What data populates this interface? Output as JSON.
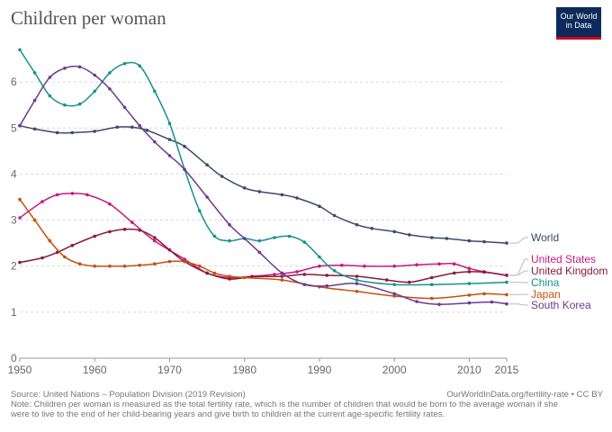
{
  "title": "Children per woman",
  "logo": {
    "line1": "Our World",
    "line2": "in Data"
  },
  "footer": {
    "source": "Source: United Nations – Population Division (2019 Revision)",
    "url": "OurWorldInData.org/fertility-rate • CC BY",
    "note_line1": "Note: Children per woman is measured as the total fertility rate, which is the number of children that would be born to the average woman if she",
    "note_line2": "were to live to the end of her child-bearing years and give birth to children at the current age-specific fertility rates."
  },
  "chart_data": {
    "type": "line",
    "title": "Children per woman",
    "xlabel": "",
    "ylabel": "",
    "xlim": [
      1950,
      2015
    ],
    "ylim": [
      0,
      7
    ],
    "xticks": [
      1950,
      1960,
      1970,
      1980,
      1990,
      2000,
      2010,
      2015
    ],
    "yticks": [
      0,
      1,
      2,
      3,
      4,
      5,
      6
    ],
    "grid": true,
    "legend": "line-end labels, right",
    "series": [
      {
        "name": "World",
        "color": "#3a4a6b",
        "x": [
          1950,
          1952,
          1955,
          1957,
          1960,
          1963,
          1965,
          1967,
          1970,
          1972,
          1975,
          1977,
          1980,
          1982,
          1985,
          1987,
          1990,
          1992,
          1995,
          1997,
          2000,
          2002,
          2005,
          2007,
          2010,
          2012,
          2015
        ],
        "y": [
          5.05,
          4.98,
          4.9,
          4.9,
          4.93,
          5.02,
          5.02,
          4.95,
          4.75,
          4.6,
          4.2,
          3.95,
          3.7,
          3.62,
          3.55,
          3.48,
          3.3,
          3.1,
          2.9,
          2.82,
          2.75,
          2.68,
          2.62,
          2.6,
          2.55,
          2.53,
          2.5
        ]
      },
      {
        "name": "United States",
        "color": "#c9187f",
        "x": [
          1950,
          1953,
          1955,
          1957,
          1959,
          1962,
          1965,
          1968,
          1972,
          1975,
          1978,
          1981,
          1984,
          1987,
          1990,
          1993,
          1996,
          2000,
          2003,
          2006,
          2008,
          2010,
          2012,
          2015
        ],
        "y": [
          3.05,
          3.4,
          3.55,
          3.58,
          3.55,
          3.35,
          2.95,
          2.55,
          2.15,
          1.85,
          1.75,
          1.78,
          1.82,
          1.88,
          2.0,
          2.02,
          2.0,
          2.0,
          2.03,
          2.05,
          2.05,
          1.95,
          1.88,
          1.8
        ]
      },
      {
        "name": "United Kingdom",
        "color": "#8b1a3d",
        "x": [
          1950,
          1953,
          1955,
          1957,
          1960,
          1962,
          1964,
          1966,
          1968,
          1970,
          1972,
          1975,
          1978,
          1981,
          1985,
          1988,
          1991,
          1995,
          1999,
          2002,
          2005,
          2008,
          2010,
          2012,
          2015
        ],
        "y": [
          2.08,
          2.18,
          2.3,
          2.45,
          2.65,
          2.75,
          2.8,
          2.78,
          2.62,
          2.35,
          2.1,
          1.85,
          1.72,
          1.77,
          1.78,
          1.82,
          1.8,
          1.78,
          1.7,
          1.65,
          1.75,
          1.85,
          1.88,
          1.87,
          1.8
        ]
      },
      {
        "name": "China",
        "color": "#17918d",
        "x": [
          1950,
          1952,
          1954,
          1956,
          1958,
          1960,
          1962,
          1964,
          1966,
          1968,
          1970,
          1972,
          1974,
          1976,
          1978,
          1980,
          1982,
          1984,
          1986,
          1988,
          1990,
          1992,
          1995,
          2000,
          2005,
          2010,
          2015
        ],
        "y": [
          6.7,
          6.2,
          5.7,
          5.5,
          5.52,
          5.8,
          6.2,
          6.4,
          6.35,
          5.8,
          5.1,
          4.1,
          3.2,
          2.65,
          2.55,
          2.6,
          2.55,
          2.62,
          2.65,
          2.52,
          2.2,
          1.9,
          1.7,
          1.6,
          1.6,
          1.62,
          1.65
        ]
      },
      {
        "name": "Japan",
        "color": "#c4510d",
        "x": [
          1950,
          1952,
          1954,
          1956,
          1958,
          1960,
          1962,
          1964,
          1966,
          1968,
          1970,
          1972,
          1974,
          1976,
          1978,
          1980,
          1985,
          1990,
          1995,
          2000,
          2005,
          2010,
          2012,
          2015
        ],
        "y": [
          3.45,
          3.0,
          2.55,
          2.2,
          2.05,
          2.0,
          2.0,
          2.0,
          2.02,
          2.05,
          2.1,
          2.1,
          2.0,
          1.85,
          1.78,
          1.75,
          1.7,
          1.55,
          1.45,
          1.35,
          1.3,
          1.37,
          1.4,
          1.38
        ]
      },
      {
        "name": "South Korea",
        "color": "#6b3a8f",
        "x": [
          1950,
          1952,
          1954,
          1956,
          1958,
          1960,
          1962,
          1964,
          1966,
          1968,
          1970,
          1972,
          1975,
          1978,
          1980,
          1982,
          1985,
          1988,
          1991,
          1995,
          2000,
          2003,
          2006,
          2010,
          2013,
          2015
        ],
        "y": [
          5.05,
          5.6,
          6.1,
          6.3,
          6.33,
          6.15,
          5.85,
          5.45,
          5.05,
          4.7,
          4.4,
          4.1,
          3.5,
          2.9,
          2.6,
          2.3,
          1.85,
          1.6,
          1.57,
          1.62,
          1.4,
          1.23,
          1.17,
          1.2,
          1.22,
          1.18
        ]
      }
    ]
  }
}
